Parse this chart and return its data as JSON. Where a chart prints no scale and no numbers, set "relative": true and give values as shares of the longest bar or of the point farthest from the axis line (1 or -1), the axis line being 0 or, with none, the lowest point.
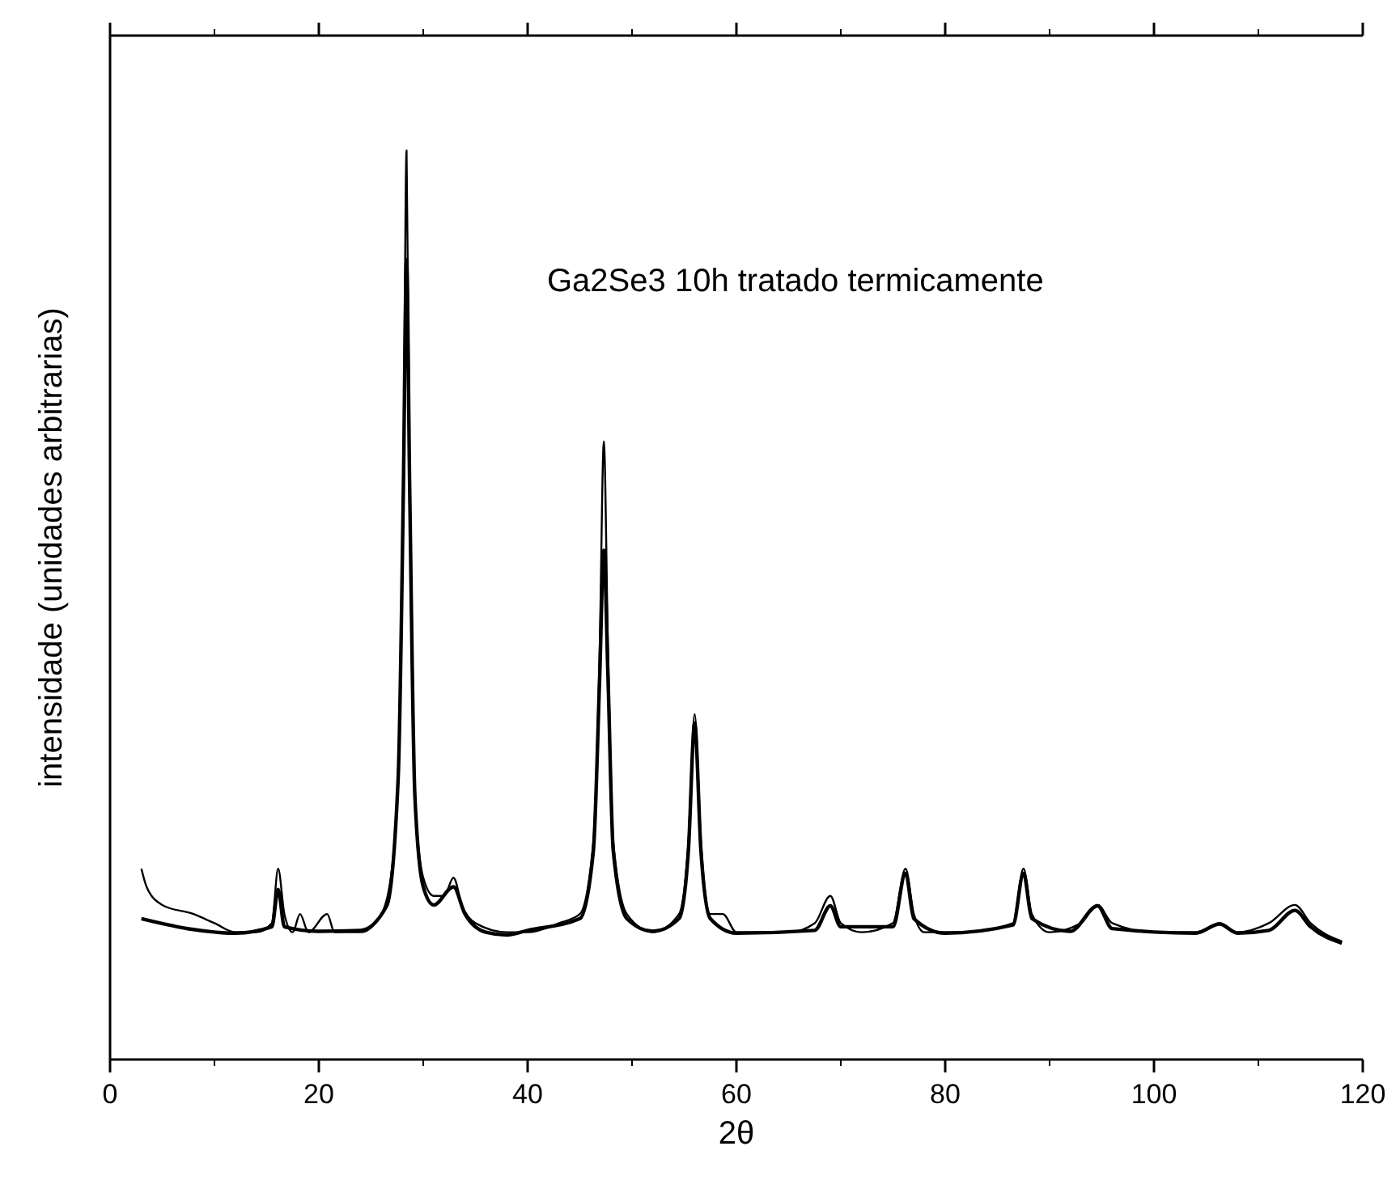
{
  "chart_data": {
    "type": "line",
    "xlabel": "2θ",
    "ylabel": "intensidade (unidades arbitrarias)",
    "annotations": [
      "Ga2Se3 10h tratado termicamente"
    ],
    "relative": true,
    "tick_labels": "x",
    "xlim": [
      0,
      120
    ],
    "xticks": [
      0,
      20,
      40,
      60,
      80,
      100,
      120
    ],
    "grid": false,
    "marker": "none",
    "line_style": "solid",
    "series": [
      {
        "color": "#000000",
        "x": [
          3,
          3.5,
          5,
          8,
          10,
          12,
          14,
          15.5,
          16.1,
          16.7,
          17.5,
          18.2,
          19,
          20.8,
          21.5,
          24,
          26,
          27,
          27.6,
          28.1,
          28.4,
          28.7,
          29.2,
          30,
          31,
          32,
          32.9,
          33.7,
          35,
          38,
          40,
          43,
          45,
          46.3,
          46.9,
          47.3,
          47.7,
          48.2,
          49.5,
          52,
          54.5,
          55.4,
          56,
          56.6,
          57.5,
          58.7,
          60,
          65,
          67.5,
          69,
          70,
          72,
          75,
          76.2,
          77,
          78,
          82,
          86.5,
          87.5,
          88.3,
          90,
          93,
          94.6,
          96,
          100,
          104,
          106.3,
          108,
          111,
          113.5,
          115,
          118
        ],
        "values": [
          0.21,
          0.19,
          0.17,
          0.16,
          0.15,
          0.14,
          0.14,
          0.15,
          0.21,
          0.16,
          0.14,
          0.16,
          0.14,
          0.16,
          0.14,
          0.14,
          0.16,
          0.21,
          0.31,
          0.63,
          1,
          0.63,
          0.29,
          0.2,
          0.18,
          0.18,
          0.2,
          0.17,
          0.15,
          0.14,
          0.14,
          0.15,
          0.16,
          0.24,
          0.45,
          0.68,
          0.45,
          0.24,
          0.16,
          0.14,
          0.16,
          0.24,
          0.38,
          0.24,
          0.16,
          0.16,
          0.14,
          0.14,
          0.15,
          0.18,
          0.15,
          0.14,
          0.15,
          0.21,
          0.16,
          0.14,
          0.14,
          0.15,
          0.21,
          0.16,
          0.14,
          0.15,
          0.17,
          0.15,
          0.14,
          0.14,
          0.15,
          0.14,
          0.15,
          0.17,
          0.15,
          0.13
        ]
      },
      {
        "color": "#000000",
        "x": [
          3,
          8,
          12,
          15.5,
          16.1,
          16.7,
          20,
          24,
          26.5,
          27.6,
          28.1,
          28.4,
          28.7,
          29.2,
          30,
          31,
          32.9,
          34,
          36,
          38,
          40,
          45,
          46.3,
          46.9,
          47.3,
          47.7,
          48.2,
          49.5,
          52,
          54.5,
          55.4,
          56,
          56.6,
          57.5,
          60,
          67.5,
          69,
          70,
          75,
          76.2,
          77,
          80,
          86.5,
          87.5,
          88.3,
          92,
          94.6,
          96,
          104,
          106.3,
          108,
          111,
          113.5,
          115,
          118
        ],
        "values": [
          0.155,
          0.143,
          0.139,
          0.146,
          0.187,
          0.146,
          0.141,
          0.142,
          0.169,
          0.31,
          0.63,
          0.88,
          0.63,
          0.29,
          0.19,
          0.17,
          0.19,
          0.16,
          0.14,
          0.137,
          0.142,
          0.155,
          0.23,
          0.42,
          0.56,
          0.42,
          0.23,
          0.155,
          0.141,
          0.155,
          0.23,
          0.37,
          0.23,
          0.155,
          0.139,
          0.142,
          0.169,
          0.146,
          0.146,
          0.205,
          0.155,
          0.139,
          0.148,
          0.205,
          0.155,
          0.141,
          0.169,
          0.144,
          0.139,
          0.149,
          0.139,
          0.142,
          0.164,
          0.146,
          0.128
        ]
      }
    ]
  }
}
